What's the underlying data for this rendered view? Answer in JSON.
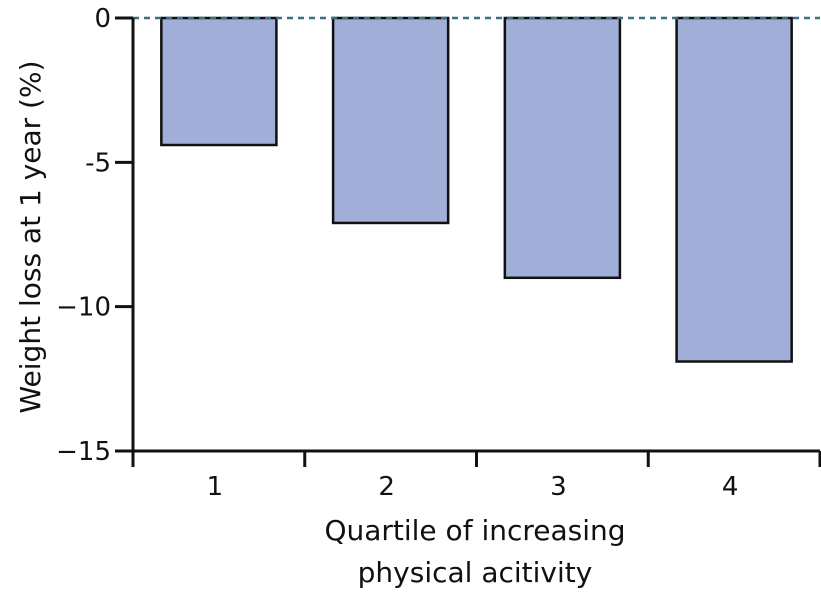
{
  "chart_data": {
    "type": "bar",
    "categories": [
      "1",
      "2",
      "3",
      "4"
    ],
    "values": [
      -4.4,
      -7.1,
      -9.0,
      -11.9
    ],
    "xlabel_lines": [
      "Quartile of increasing",
      "physical acitivity"
    ],
    "ylabel": "Weight loss at 1 year (%)",
    "ylim": [
      -15,
      0
    ],
    "yticks": [
      0,
      -5,
      -10,
      -15
    ],
    "ytick_labels": [
      "0",
      "-5",
      "−10",
      "−15"
    ],
    "grid": false,
    "reference_line": 0,
    "colors": {
      "bar_fill": "#a0aed8",
      "bar_stroke": "#111111",
      "axis": "#111111",
      "reference_line": "#3d6e84"
    }
  }
}
